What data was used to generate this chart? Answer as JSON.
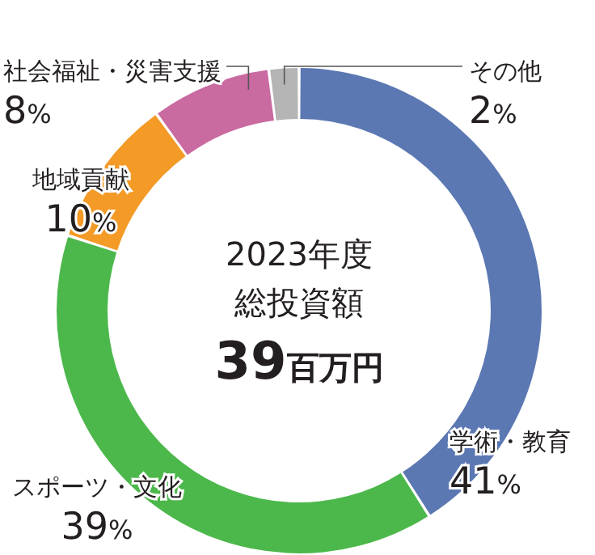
{
  "chart_data": {
    "type": "donut",
    "categories": [
      "学術・教育",
      "スポーツ・文化",
      "地域貢献",
      "社会福祉・災害支援",
      "その他"
    ],
    "values": [
      41,
      39,
      10,
      8,
      2
    ],
    "colors": [
      "#5b78b3",
      "#4cb84b",
      "#f39a27",
      "#c96aa1",
      "#b5b5b5"
    ],
    "value_labels": [
      "41%",
      "39%",
      "10%",
      "8%",
      "2%"
    ],
    "annotations": [
      "2023年度",
      "総投資額",
      "39百万円"
    ]
  }
}
